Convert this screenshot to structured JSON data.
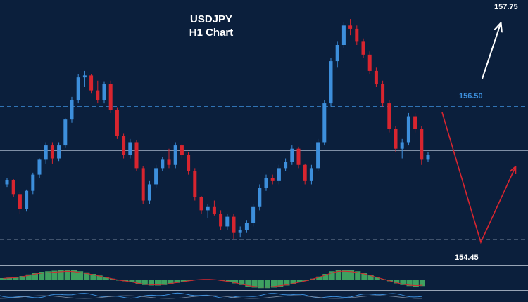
{
  "chart_data": {
    "type": "candlestick",
    "title": "USDJPY",
    "subtitle": "H1 Chart",
    "timeframe": "H1",
    "grid": false,
    "ylim": [
      154.2,
      158.1
    ],
    "colors": {
      "background": "#0b1f3c",
      "bull": "#3d8fdc",
      "bear": "#d8252f",
      "resistance_line": "#3d8fdc",
      "level_label_resistance": "#3d8fdc",
      "level_label_other": "#ffffff",
      "scenario_up": "#ffffff",
      "scenario_down": "#d8252f",
      "osc_bar": "#3ea160"
    },
    "levels": [
      {
        "name": "top",
        "label": "157.75",
        "value": 157.75,
        "style": "none"
      },
      {
        "name": "resistance",
        "label": "156.50",
        "value": 156.5,
        "style": "dashed"
      },
      {
        "name": "pivot",
        "label": "",
        "value": 155.82,
        "style": "solid"
      },
      {
        "name": "support",
        "label": "154.45",
        "value": 154.45,
        "style": "dashed"
      }
    ],
    "candles": [
      [
        155.3,
        155.4,
        155.26,
        155.36
      ],
      [
        155.36,
        155.38,
        155.1,
        155.15
      ],
      [
        155.15,
        155.18,
        154.85,
        154.92
      ],
      [
        154.92,
        155.22,
        154.88,
        155.2
      ],
      [
        155.2,
        155.48,
        155.15,
        155.45
      ],
      [
        155.45,
        155.7,
        155.4,
        155.68
      ],
      [
        155.68,
        155.95,
        155.62,
        155.9
      ],
      [
        155.9,
        155.95,
        155.62,
        155.7
      ],
      [
        155.7,
        155.95,
        155.66,
        155.9
      ],
      [
        155.9,
        156.32,
        155.86,
        156.3
      ],
      [
        156.3,
        156.65,
        156.25,
        156.6
      ],
      [
        156.6,
        157.0,
        156.55,
        156.95
      ],
      [
        156.95,
        157.05,
        156.8,
        156.98
      ],
      [
        156.98,
        157.0,
        156.7,
        156.75
      ],
      [
        156.75,
        156.9,
        156.55,
        156.6
      ],
      [
        156.6,
        156.88,
        156.55,
        156.85
      ],
      [
        156.85,
        156.9,
        156.4,
        156.45
      ],
      [
        156.45,
        156.48,
        156.0,
        156.05
      ],
      [
        156.05,
        156.08,
        155.7,
        155.75
      ],
      [
        155.75,
        156.0,
        155.7,
        155.95
      ],
      [
        155.95,
        155.98,
        155.5,
        155.55
      ],
      [
        155.55,
        155.58,
        155.0,
        155.05
      ],
      [
        155.05,
        155.35,
        155.0,
        155.3
      ],
      [
        155.3,
        155.6,
        155.25,
        155.55
      ],
      [
        155.55,
        155.72,
        155.5,
        155.68
      ],
      [
        155.68,
        155.85,
        155.55,
        155.6
      ],
      [
        155.6,
        155.95,
        155.55,
        155.9
      ],
      [
        155.9,
        155.92,
        155.7,
        155.75
      ],
      [
        155.75,
        155.8,
        155.45,
        155.5
      ],
      [
        155.5,
        155.55,
        155.05,
        155.1
      ],
      [
        155.1,
        155.12,
        154.85,
        154.9
      ],
      [
        154.9,
        155.0,
        154.78,
        154.95
      ],
      [
        154.95,
        155.05,
        154.82,
        154.85
      ],
      [
        154.85,
        154.9,
        154.6,
        154.65
      ],
      [
        154.65,
        154.85,
        154.6,
        154.8
      ],
      [
        154.8,
        154.85,
        154.45,
        154.55
      ],
      [
        154.55,
        154.65,
        154.48,
        154.6
      ],
      [
        154.6,
        154.75,
        154.55,
        154.7
      ],
      [
        154.7,
        155.0,
        154.65,
        154.95
      ],
      [
        154.95,
        155.3,
        154.9,
        155.25
      ],
      [
        155.25,
        155.45,
        155.2,
        155.4
      ],
      [
        155.4,
        155.45,
        155.3,
        155.35
      ],
      [
        155.35,
        155.6,
        155.3,
        155.55
      ],
      [
        155.55,
        155.7,
        155.5,
        155.65
      ],
      [
        155.65,
        155.9,
        155.6,
        155.85
      ],
      [
        155.85,
        155.88,
        155.55,
        155.6
      ],
      [
        155.6,
        155.62,
        155.3,
        155.35
      ],
      [
        155.35,
        155.6,
        155.3,
        155.55
      ],
      [
        155.55,
        156.0,
        155.5,
        155.95
      ],
      [
        155.95,
        156.6,
        155.9,
        156.55
      ],
      [
        156.55,
        157.25,
        156.5,
        157.2
      ],
      [
        157.2,
        157.5,
        157.1,
        157.45
      ],
      [
        157.45,
        157.8,
        157.4,
        157.75
      ],
      [
        157.75,
        157.85,
        157.6,
        157.7
      ],
      [
        157.7,
        157.75,
        157.45,
        157.5
      ],
      [
        157.5,
        157.55,
        157.25,
        157.3
      ],
      [
        157.3,
        157.35,
        157.0,
        157.05
      ],
      [
        157.05,
        157.1,
        156.8,
        156.85
      ],
      [
        156.85,
        156.9,
        156.5,
        156.55
      ],
      [
        156.55,
        156.6,
        156.1,
        156.15
      ],
      [
        156.15,
        156.2,
        155.8,
        155.85
      ],
      [
        155.85,
        156.0,
        155.7,
        155.95
      ],
      [
        155.95,
        156.4,
        155.9,
        156.35
      ],
      [
        156.35,
        156.4,
        156.1,
        156.15
      ],
      [
        156.15,
        156.2,
        155.6,
        155.68
      ],
      [
        155.68,
        155.8,
        155.65,
        155.75
      ]
    ],
    "oscillator_histogram": [
      0.2,
      0.25,
      0.3,
      0.4,
      0.55,
      0.7,
      0.8,
      0.85,
      0.9,
      0.95,
      1.0,
      0.95,
      0.85,
      0.75,
      0.6,
      0.45,
      0.3,
      0.15,
      0.0,
      -0.1,
      -0.2,
      -0.35,
      -0.45,
      -0.5,
      -0.5,
      -0.45,
      -0.35,
      -0.25,
      -0.15,
      -0.05,
      0.05,
      0.1,
      0.1,
      0.05,
      -0.05,
      -0.15,
      -0.3,
      -0.45,
      -0.6,
      -0.7,
      -0.75,
      -0.75,
      -0.7,
      -0.6,
      -0.5,
      -0.35,
      -0.2,
      -0.05,
      0.15,
      0.35,
      0.6,
      0.85,
      1.0,
      1.0,
      0.95,
      0.85,
      0.7,
      0.5,
      0.3,
      0.1,
      -0.1,
      -0.3,
      -0.45,
      -0.55,
      -0.6,
      -0.55
    ],
    "projection_white": [
      [
        685,
        112
      ],
      [
        711,
        34
      ]
    ],
    "projection_red": [
      [
        628,
        160
      ],
      [
        683,
        345
      ],
      [
        732,
        238
      ]
    ]
  }
}
